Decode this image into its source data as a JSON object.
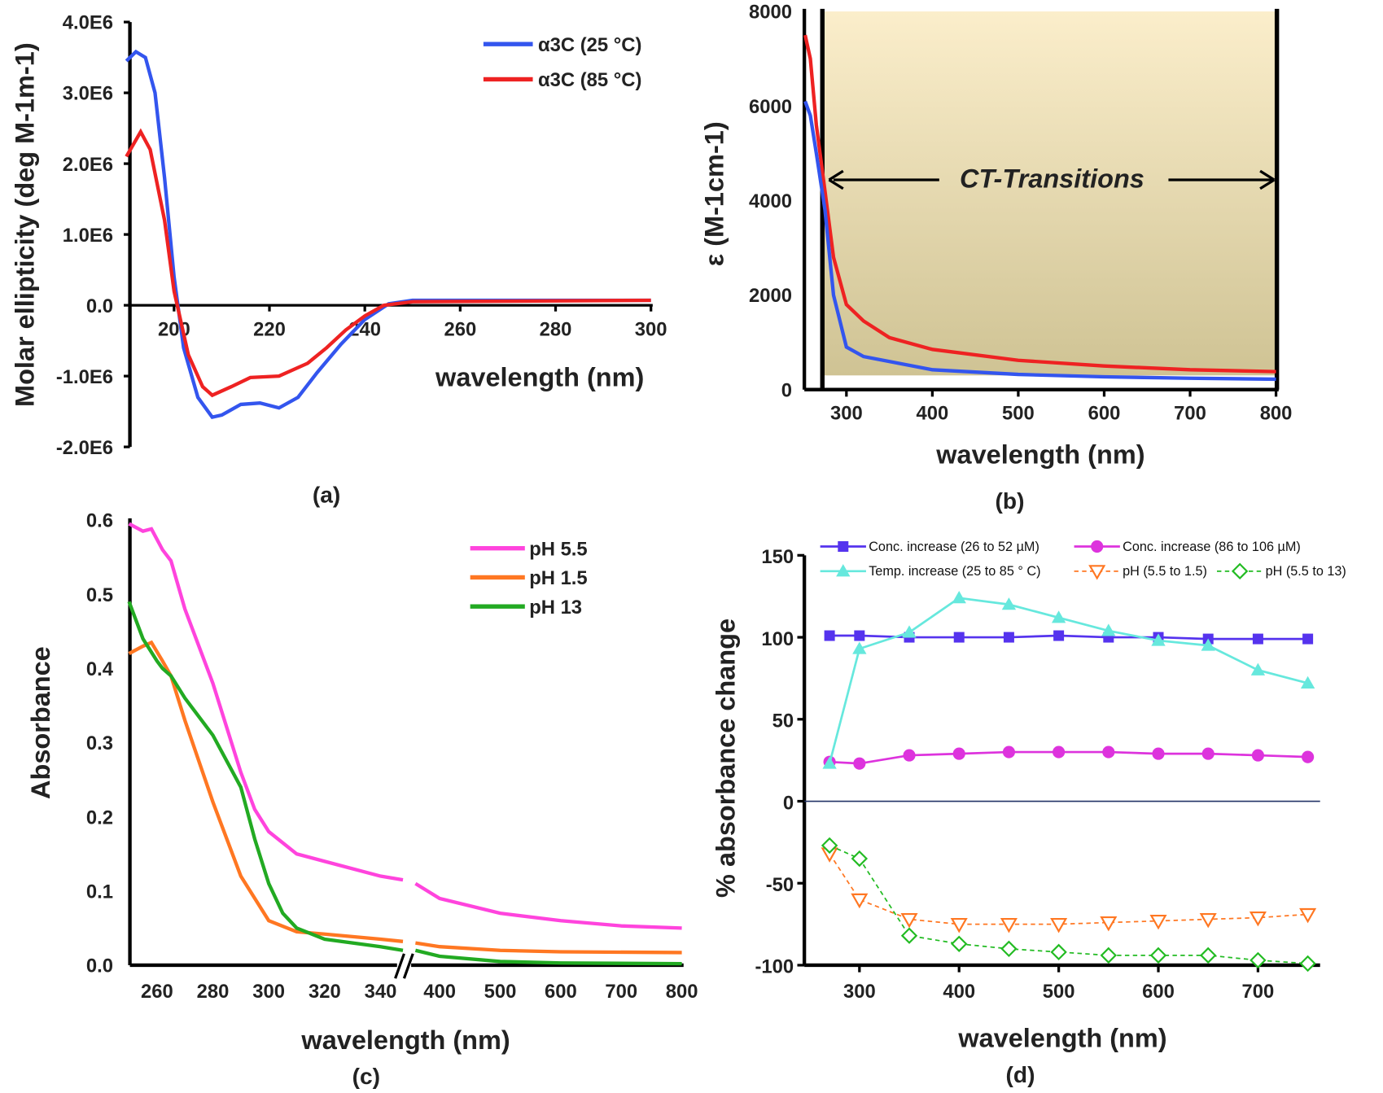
{
  "chart_data": [
    {
      "panel": "(a)",
      "type": "line",
      "xlabel": "wavelength (nm)",
      "ylabel": "Molar ellipticity (deg M-1m-1)",
      "xlim": [
        190,
        300
      ],
      "ylim": [
        -2000000,
        4000000
      ],
      "xticks": [
        200,
        220,
        240,
        260,
        280,
        300
      ],
      "yticks": [
        -2000000,
        -1000000,
        0,
        1000000,
        2000000,
        3000000,
        4000000
      ],
      "ytick_labels": [
        "-2.0E6",
        "-1.0E6",
        "0.0",
        "1.0E6",
        "2.0E6",
        "3.0E6",
        "4.0E6"
      ],
      "legend": "top-right",
      "series": [
        {
          "name": "α3C (25 °C)",
          "color": "#3355ee",
          "x": [
            190,
            192,
            194,
            196,
            198,
            200,
            202,
            205,
            208,
            210,
            214,
            218,
            222,
            226,
            230,
            235,
            240,
            245,
            250,
            300
          ],
          "y": [
            3450000,
            3580000,
            3500000,
            3000000,
            1800000,
            400000,
            -600000,
            -1300000,
            -1580000,
            -1550000,
            -1400000,
            -1380000,
            -1450000,
            -1300000,
            -950000,
            -550000,
            -200000,
            20000,
            70000,
            70000
          ]
        },
        {
          "name": "α3C (85 °C)",
          "color": "#ee2222",
          "x": [
            190,
            193,
            195,
            198,
            200,
            203,
            206,
            208,
            212,
            216,
            222,
            228,
            232,
            236,
            240,
            244,
            250,
            300
          ],
          "y": [
            2100000,
            2450000,
            2200000,
            1200000,
            200000,
            -700000,
            -1150000,
            -1270000,
            -1150000,
            -1020000,
            -1000000,
            -820000,
            -600000,
            -350000,
            -150000,
            0,
            50000,
            70000
          ]
        }
      ]
    },
    {
      "panel": "(b)",
      "type": "line",
      "xlabel": "wavelength (nm)",
      "ylabel": "ε (M-1cm-1)",
      "xlim": [
        250,
        800
      ],
      "ylim": [
        0,
        8000
      ],
      "xticks": [
        300,
        400,
        500,
        600,
        700,
        800
      ],
      "yticks": [
        0,
        2000,
        4000,
        6000,
        8000
      ],
      "annotation": "CT-Transitions",
      "shaded_region": [
        272,
        800
      ],
      "series": [
        {
          "color": "#ee2222",
          "x": [
            252,
            258,
            265,
            275,
            285,
            300,
            320,
            350,
            400,
            500,
            600,
            700,
            800
          ],
          "y": [
            7500,
            7000,
            5600,
            4200,
            2800,
            1800,
            1450,
            1100,
            850,
            620,
            500,
            420,
            380
          ]
        },
        {
          "color": "#3355ee",
          "x": [
            252,
            258,
            265,
            275,
            285,
            300,
            320,
            400,
            500,
            600,
            700,
            800
          ],
          "y": [
            6100,
            5800,
            5000,
            3800,
            2000,
            900,
            700,
            420,
            320,
            270,
            240,
            220
          ]
        }
      ]
    },
    {
      "panel": "(c)",
      "type": "line",
      "xlabel": "wavelength (nm)",
      "ylabel": "Absorbance",
      "xlim": [
        250,
        800
      ],
      "axis_break": 350,
      "ylim": [
        0,
        0.6
      ],
      "xticks": [
        260,
        280,
        300,
        320,
        340,
        400,
        500,
        600,
        700,
        800
      ],
      "yticks": [
        0.0,
        0.1,
        0.2,
        0.3,
        0.4,
        0.5,
        0.6
      ],
      "ytick_labels": [
        "0.0",
        "0.1",
        "0.2",
        "0.3",
        "0.4",
        "0.5",
        "0.6"
      ],
      "legend": "top-right",
      "series": [
        {
          "name": "pH 5.5",
          "color": "#ff44dd",
          "x": [
            250,
            255,
            258,
            262,
            265,
            270,
            280,
            290,
            295,
            300,
            310,
            320,
            340,
            348,
            360,
            400,
            500,
            600,
            700,
            800
          ],
          "y": [
            0.595,
            0.585,
            0.588,
            0.56,
            0.545,
            0.48,
            0.38,
            0.26,
            0.21,
            0.18,
            0.15,
            0.14,
            0.12,
            0.115,
            0.11,
            0.09,
            0.07,
            0.06,
            0.053,
            0.05
          ]
        },
        {
          "name": "pH 1.5",
          "color": "#ff7722",
          "x": [
            250,
            255,
            258,
            262,
            265,
            270,
            280,
            290,
            300,
            310,
            320,
            340,
            348,
            360,
            400,
            500,
            600,
            800
          ],
          "y": [
            0.42,
            0.43,
            0.435,
            0.41,
            0.39,
            0.33,
            0.22,
            0.12,
            0.06,
            0.045,
            0.042,
            0.035,
            0.032,
            0.03,
            0.025,
            0.02,
            0.018,
            0.017
          ]
        },
        {
          "name": "pH 13",
          "color": "#22aa22",
          "x": [
            250,
            255,
            260,
            262,
            265,
            270,
            280,
            290,
            295,
            300,
            305,
            310,
            320,
            340,
            348,
            360,
            400,
            500,
            600,
            800
          ],
          "y": [
            0.49,
            0.44,
            0.41,
            0.4,
            0.39,
            0.36,
            0.31,
            0.24,
            0.17,
            0.11,
            0.07,
            0.05,
            0.035,
            0.025,
            0.02,
            0.02,
            0.012,
            0.005,
            0.003,
            0.002
          ]
        }
      ]
    },
    {
      "panel": "(d)",
      "type": "line",
      "xlabel": "wavelength (nm)",
      "ylabel": "% absorbance change",
      "xlim": [
        250,
        765
      ],
      "ylim": [
        -100,
        150
      ],
      "xticks": [
        300,
        400,
        500,
        600,
        700
      ],
      "yticks": [
        -100,
        -50,
        0,
        50,
        100,
        150
      ],
      "legend": "top",
      "x": [
        270,
        300,
        350,
        400,
        450,
        500,
        550,
        600,
        650,
        700,
        750
      ],
      "series": [
        {
          "name": "Conc. increase (26 to 52 µM)",
          "color": "#5533ee",
          "marker": "square",
          "dash": false,
          "values": [
            101,
            101,
            100,
            100,
            100,
            101,
            100,
            100,
            99,
            99,
            99
          ]
        },
        {
          "name": "Conc. increase (86 to 106 µM)",
          "color": "#dd33dd",
          "marker": "circle",
          "dash": false,
          "values": [
            24,
            23,
            28,
            29,
            30,
            30,
            30,
            29,
            29,
            28,
            27
          ]
        },
        {
          "name": "Temp. increase (25 to 85 ° C)",
          "color": "#66e8dd",
          "marker": "triangle",
          "dash": false,
          "values": [
            23,
            93,
            103,
            124,
            120,
            112,
            104,
            98,
            95,
            80,
            72
          ]
        },
        {
          "name": "pH (5.5 to 1.5)",
          "color": "#ff7722",
          "marker": "triangle-down-open",
          "dash": true,
          "values": [
            -32,
            -60,
            -72,
            -75,
            -75,
            -75,
            -74,
            -73,
            -72,
            -71,
            -69
          ]
        },
        {
          "name": "pH (5.5 to 13)",
          "color": "#22bb22",
          "marker": "diamond-open",
          "dash": true,
          "values": [
            -27,
            -35,
            -82,
            -87,
            -90,
            -92,
            -94,
            -94,
            -94,
            -97,
            -99
          ]
        }
      ]
    }
  ]
}
